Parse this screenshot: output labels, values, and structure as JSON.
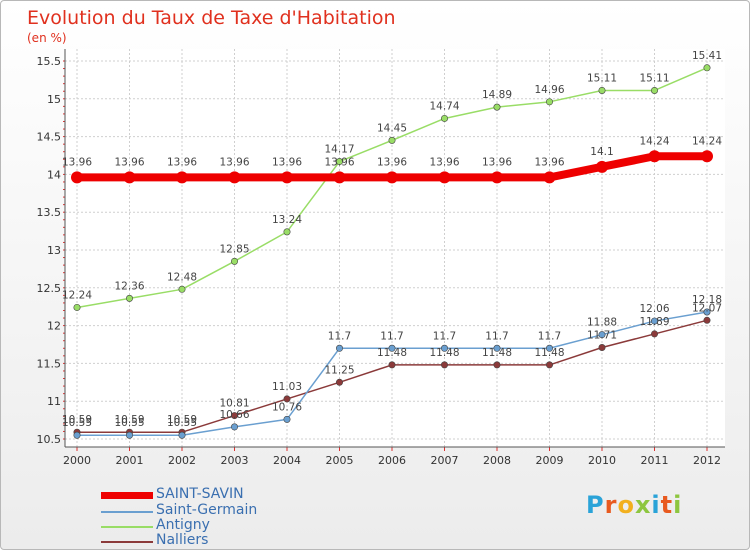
{
  "title": "Evolution du Taux de Taxe d'Habitation",
  "unit_label": "(en %)",
  "chart_data": {
    "type": "line",
    "title": "Evolution du Taux de Taxe d'Habitation",
    "ylabel": "(en %)",
    "xlabel": "",
    "x": [
      "2000",
      "2001",
      "2002",
      "2003",
      "2004",
      "2005",
      "2006",
      "2007",
      "2008",
      "2009",
      "2010",
      "2011",
      "2012"
    ],
    "ylim": [
      10.5,
      15.5
    ],
    "y_ticks": [
      "10.5",
      "11",
      "11.5",
      "12",
      "12.5",
      "13",
      "13.5",
      "14",
      "14.5",
      "15",
      "15.5"
    ],
    "grid": true,
    "legend_position": "bottom-left",
    "series": [
      {
        "name": "SAINT-SAVIN",
        "color": "#ee0000",
        "values": [
          13.96,
          13.96,
          13.96,
          13.96,
          13.96,
          13.96,
          13.96,
          13.96,
          13.96,
          13.96,
          14.1,
          14.24,
          14.24
        ],
        "labels": [
          "13.96",
          "13.96",
          "13.96",
          "13.96",
          "13.96",
          "13.96",
          "13.96",
          "13.96",
          "13.96",
          "13.96",
          "14.1",
          "14.24",
          "14.24"
        ]
      },
      {
        "name": "Saint-Germain",
        "color": "#6a9fd0",
        "values": [
          10.55,
          10.55,
          10.55,
          10.66,
          10.76,
          11.7,
          11.7,
          11.7,
          11.7,
          11.7,
          11.88,
          12.06,
          12.18
        ],
        "labels": [
          "10.55",
          "10.55",
          "10.55",
          "10.66",
          "10.76",
          "11.7",
          "11.7",
          "11.7",
          "11.7",
          "11.7",
          "11.88",
          "12.06",
          "12.18"
        ]
      },
      {
        "name": "Antigny",
        "color": "#99dd66",
        "values": [
          12.24,
          12.36,
          12.48,
          12.85,
          13.24,
          14.17,
          14.45,
          14.74,
          14.89,
          14.96,
          15.11,
          15.11,
          15.41
        ],
        "labels": [
          "12.24",
          "12.36",
          "12.48",
          "12.85",
          "13.24",
          "14.17",
          "14.45",
          "14.74",
          "14.89",
          "14.96",
          "15.11",
          "15.11",
          "15.41"
        ]
      },
      {
        "name": "Nalliers",
        "color": "#8b3a3a",
        "values": [
          10.59,
          10.59,
          10.59,
          10.81,
          11.03,
          11.25,
          11.48,
          11.48,
          11.48,
          11.48,
          11.71,
          11.89,
          12.07
        ],
        "labels": [
          "10.59",
          "10.59",
          "10.59",
          "10.81",
          "11.03",
          "11.25",
          "11.48",
          "11.48",
          "11.48",
          "11.48",
          "11.71",
          "11.89",
          "12.07"
        ]
      }
    ]
  },
  "legend": [
    {
      "label": "SAINT-SAVIN",
      "color": "#ee0000"
    },
    {
      "label": "Saint-Germain",
      "color": "#6a9fd0"
    },
    {
      "label": "Antigny",
      "color": "#99dd66"
    },
    {
      "label": "Nalliers",
      "color": "#8b3a3a"
    }
  ],
  "logo": {
    "text": "Proxiti",
    "letter_colors": [
      "#2aa3d8",
      "#e85a1f",
      "#f2b01e",
      "#8dc63f",
      "#2aa3d8",
      "#e85a1f",
      "#8dc63f"
    ]
  }
}
